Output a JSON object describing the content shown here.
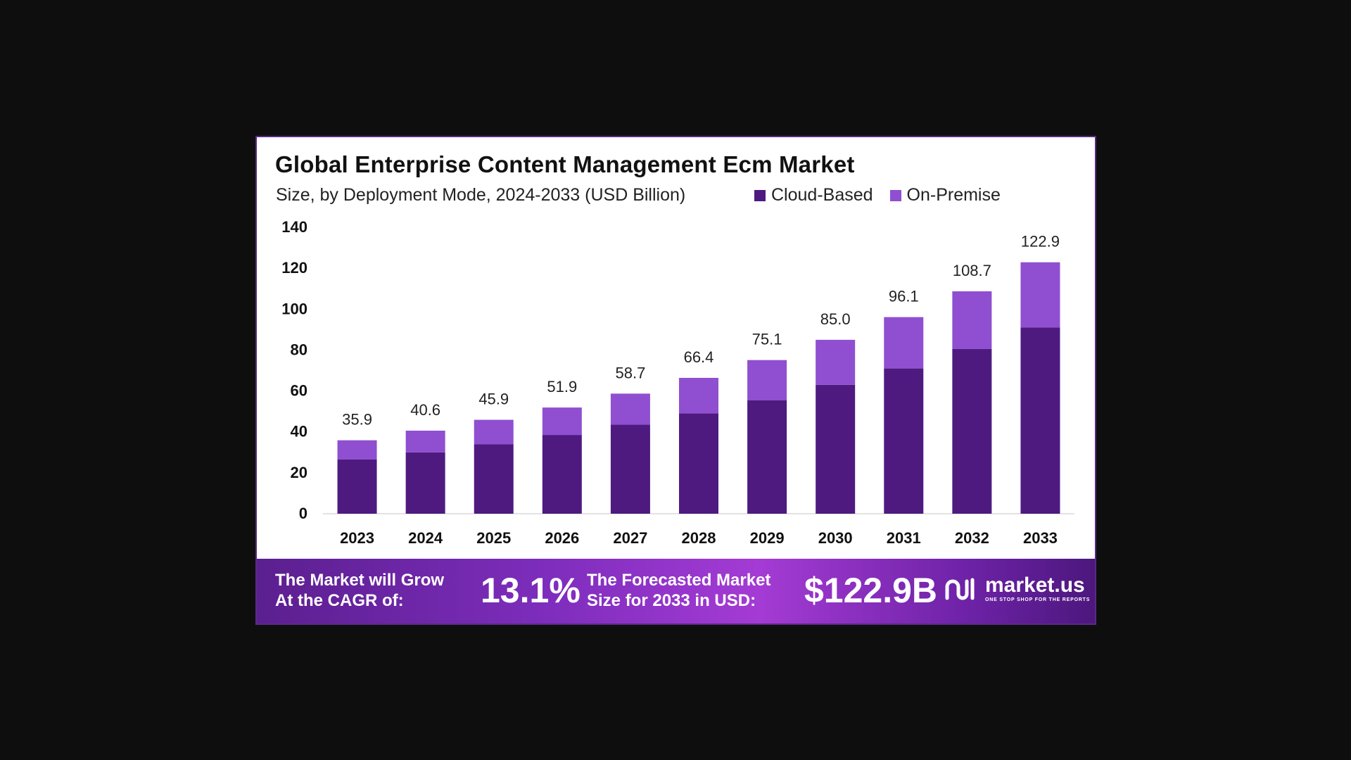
{
  "title": "Global Enterprise Content Management Ecm Market",
  "subtitle": "Size, by Deployment Mode, 2024-2033 (USD Billion)",
  "legend": [
    {
      "label": "Cloud-Based",
      "color": "#4e1a80"
    },
    {
      "label": "On-Premise",
      "color": "#8f4fd0"
    }
  ],
  "chart_data": {
    "type": "bar",
    "stacked": true,
    "categories": [
      "2023",
      "2024",
      "2025",
      "2026",
      "2027",
      "2028",
      "2029",
      "2030",
      "2031",
      "2032",
      "2033"
    ],
    "series": [
      {
        "name": "Cloud-Based",
        "values": [
          26.5,
          30.0,
          34.0,
          38.5,
          43.5,
          49.0,
          55.5,
          63.0,
          71.0,
          80.5,
          91.0
        ]
      },
      {
        "name": "On-Premise",
        "values": [
          9.4,
          10.6,
          11.9,
          13.4,
          15.2,
          17.4,
          19.6,
          22.0,
          25.1,
          28.2,
          31.9
        ]
      }
    ],
    "totals": [
      "35.9",
      "40.6",
      "45.9",
      "51.9",
      "58.7",
      "66.4",
      "75.1",
      "85.0",
      "96.1",
      "108.7",
      "122.9"
    ],
    "yticks": [
      0,
      20,
      40,
      60,
      80,
      100,
      120,
      140
    ],
    "ylim": [
      0,
      140
    ],
    "grid": false
  },
  "banner": {
    "cagr_label_line1": "The Market will Grow",
    "cagr_label_line2": "At the CAGR of:",
    "cagr_value": "13.1%",
    "forecast_label_line1": "The Forecasted Market",
    "forecast_label_line2": "Size for 2033 in USD:",
    "forecast_value": "$122.9B",
    "logo_name": "market.us",
    "logo_tagline": "ONE STOP SHOP FOR THE REPORTS"
  }
}
